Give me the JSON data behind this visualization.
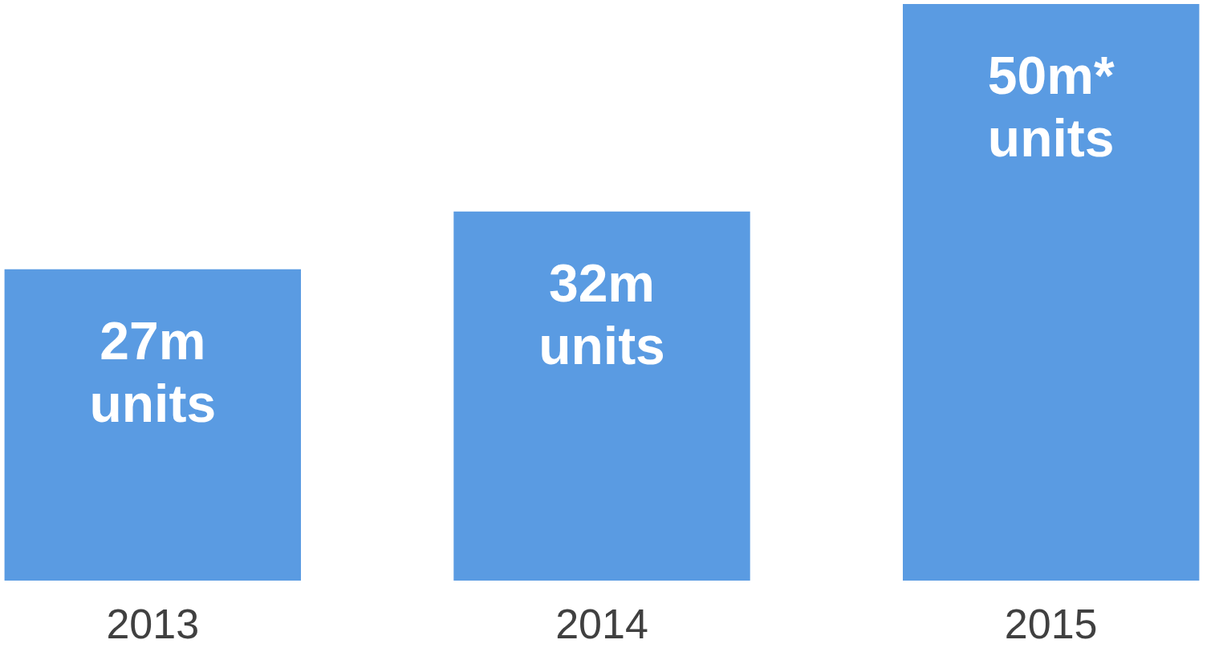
{
  "chart_data": {
    "type": "bar",
    "categories": [
      "2013",
      "2014",
      "2015"
    ],
    "values": [
      27,
      32,
      50
    ],
    "value_labels": [
      "27m units",
      "32m units",
      "50m* units"
    ],
    "color": "#5a9be2"
  }
}
